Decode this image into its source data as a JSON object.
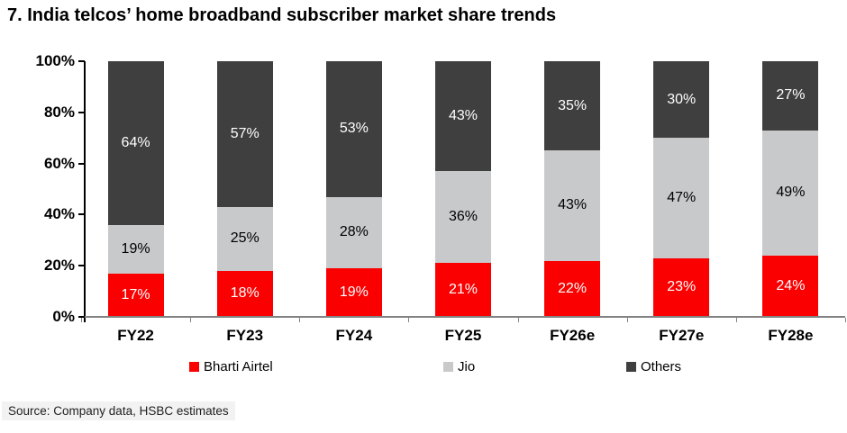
{
  "title": "7. India telcos’ home broadband subscriber market share trends",
  "source": "Source: Company data, HSBC estimates",
  "colors": {
    "airtel_red": "#fa0000",
    "jio_gray": "#c8c9ca",
    "others_dark": "#3f3f3f",
    "axis_black": "#000000",
    "baseline_gray": "#828282",
    "source_bg": "#f2f2f2"
  },
  "chart_data": {
    "type": "bar",
    "stacked": true,
    "title": "7. India telcos’ home broadband subscriber market share trends",
    "categories": [
      "FY22",
      "FY23",
      "FY24",
      "FY25",
      "FY26e",
      "FY27e",
      "FY28e"
    ],
    "series": [
      {
        "name": "Bharti Airtel",
        "color": "#fa0000",
        "label_color": "#ffffff",
        "values": [
          17,
          18,
          19,
          21,
          22,
          23,
          24
        ]
      },
      {
        "name": "Jio",
        "color": "#c8c9ca",
        "label_color": "#000000",
        "values": [
          19,
          25,
          28,
          36,
          43,
          47,
          49
        ]
      },
      {
        "name": "Others",
        "color": "#3f3f3f",
        "label_color": "#ffffff",
        "values": [
          64,
          57,
          53,
          43,
          35,
          30,
          27
        ]
      }
    ],
    "y_ticks": [
      "0%",
      "20%",
      "40%",
      "60%",
      "80%",
      "100%"
    ],
    "ylim": [
      0,
      100
    ],
    "value_suffix": "%",
    "grid": false,
    "legend_position": "bottom",
    "xlabel": "",
    "ylabel": ""
  }
}
